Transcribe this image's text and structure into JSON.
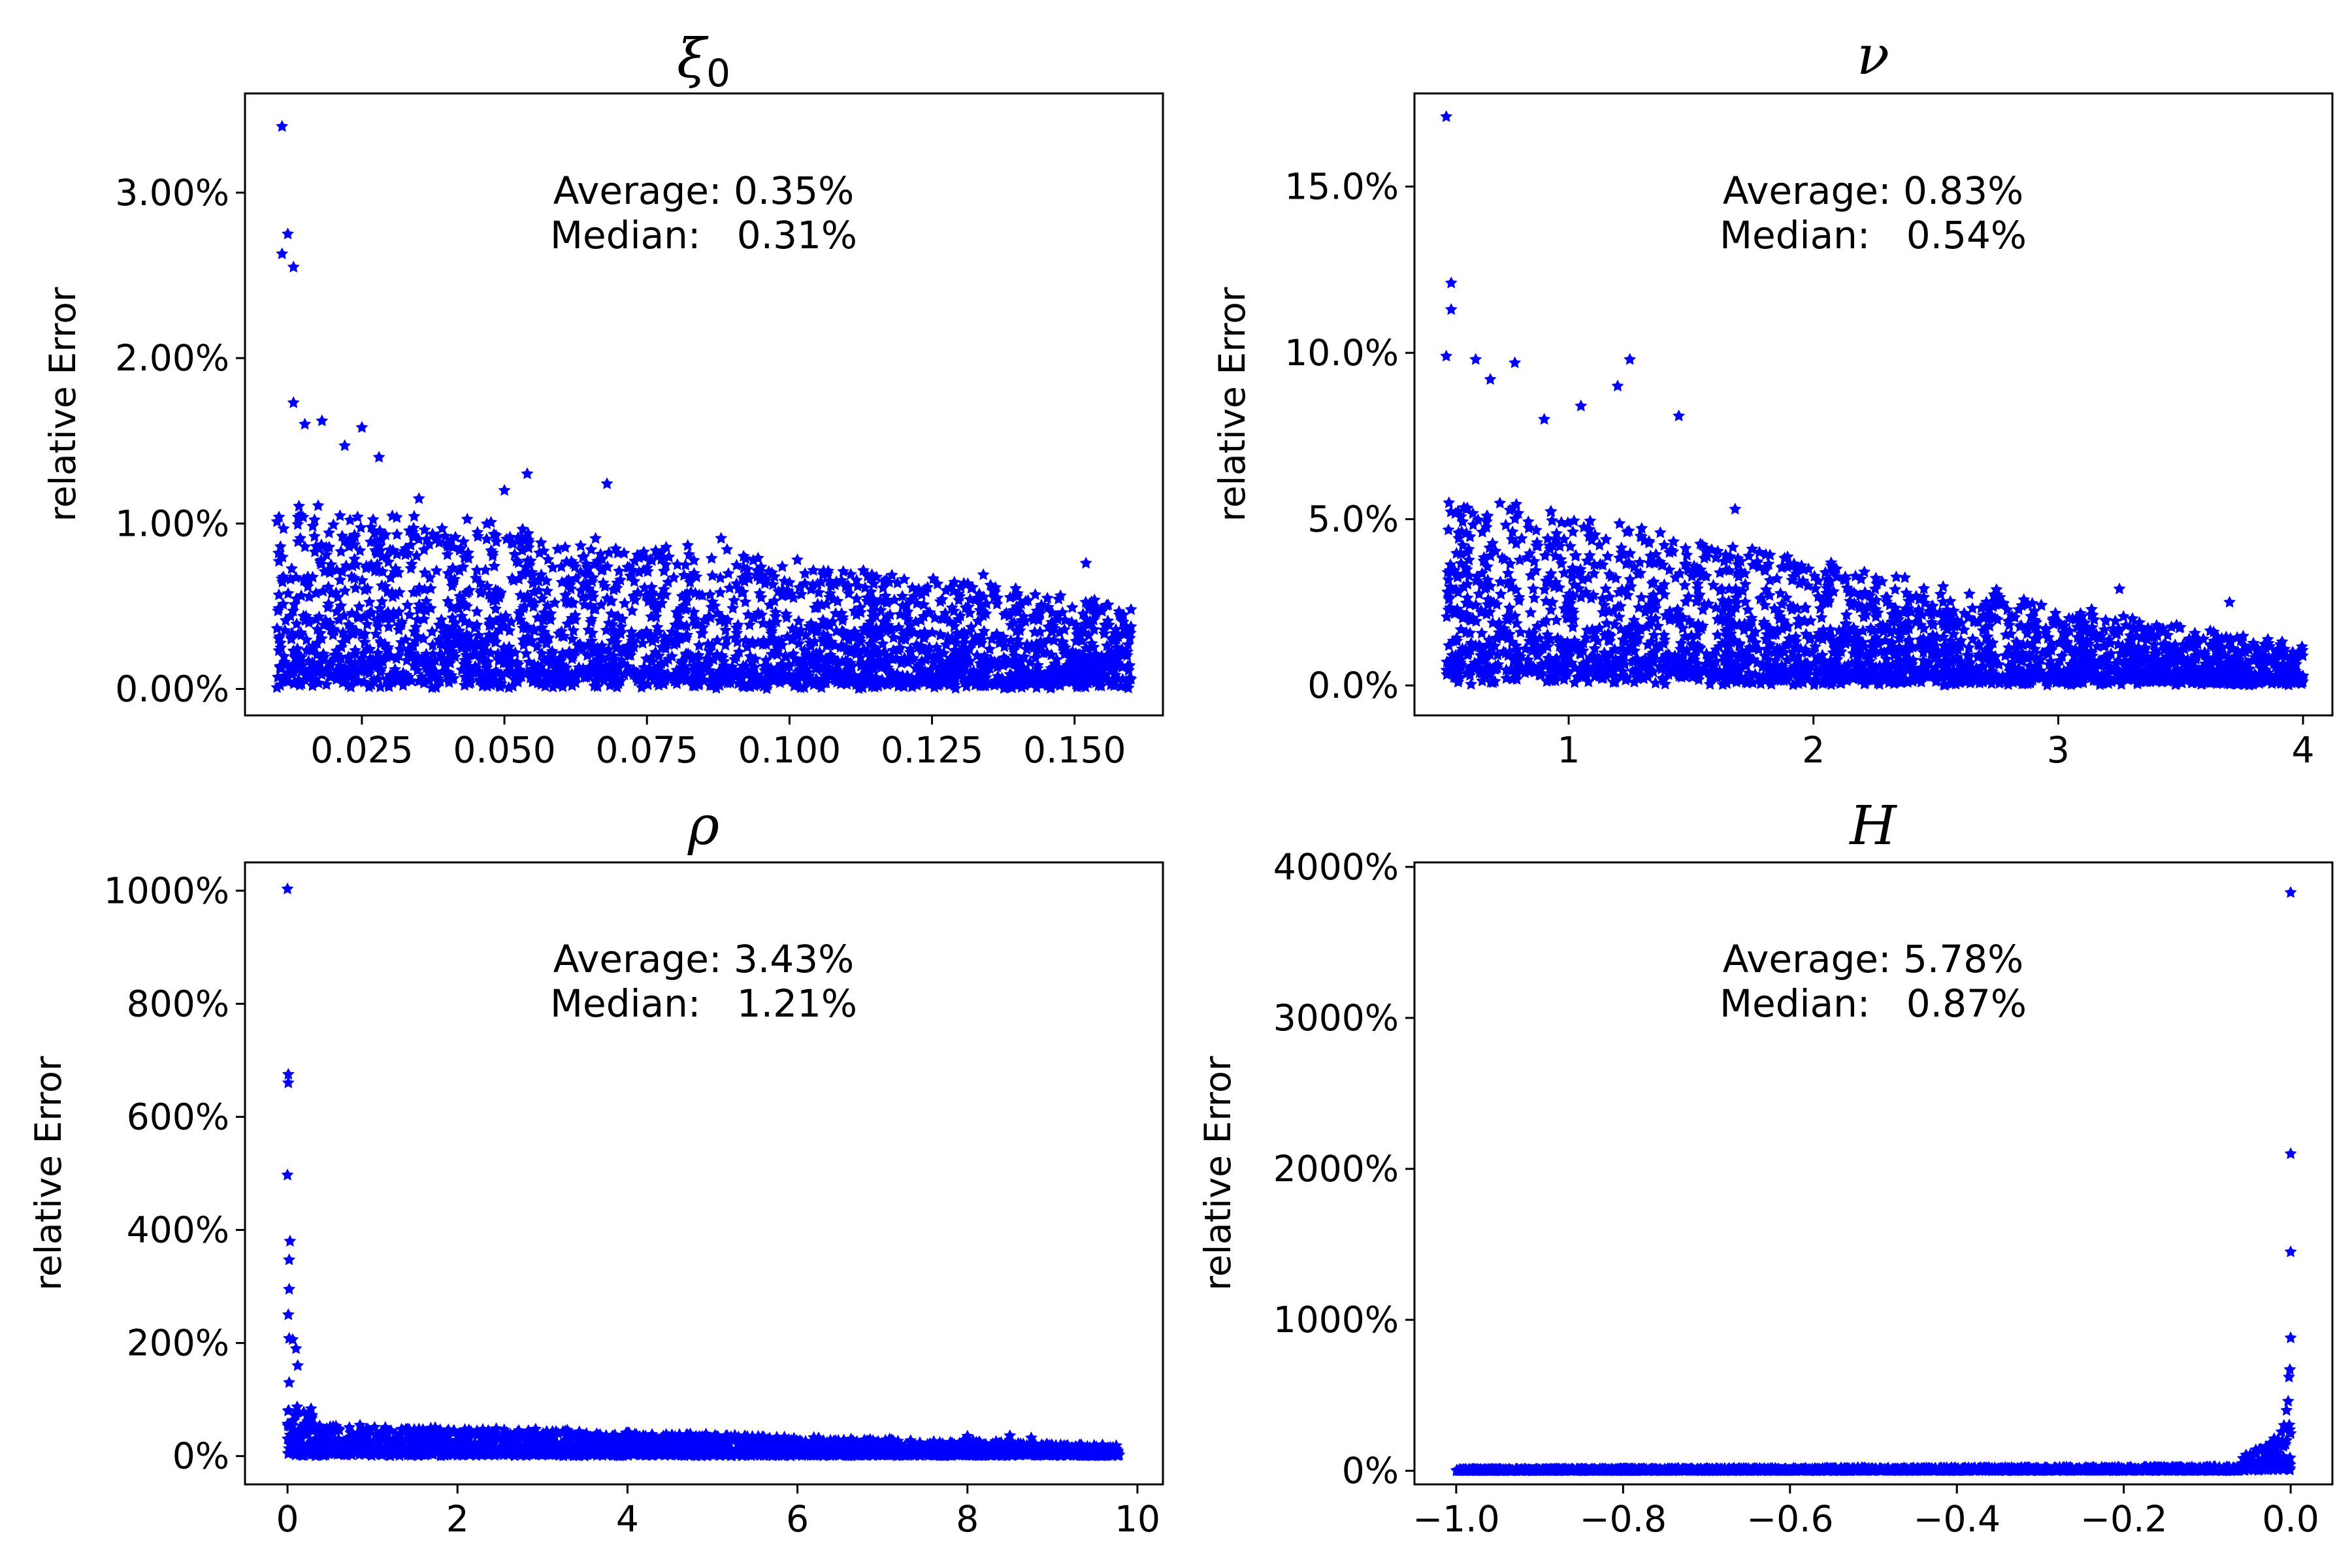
{
  "figure": {
    "point_color": "#0000ff",
    "marker": "star-icon"
  },
  "chart_data": [
    {
      "type": "scatter",
      "title": "ξ",
      "title_sub": "0",
      "ylabel": "relative Error",
      "xlabel": "",
      "xlim": [
        0.0045,
        0.1655
      ],
      "ylim": [
        -0.16,
        3.6
      ],
      "xticks": [
        0.025,
        0.05,
        0.075,
        0.1,
        0.125,
        0.15
      ],
      "xtick_labels": [
        "0.025",
        "0.050",
        "0.075",
        "0.100",
        "0.125",
        "0.150"
      ],
      "yticks": [
        0,
        1,
        2,
        3
      ],
      "ytick_labels": [
        "0.00%",
        "1.00%",
        "2.00%",
        "3.00%"
      ],
      "annotation": {
        "average": "Average: 0.35%",
        "median": "Median:   0.31%"
      },
      "outliers": [
        [
          0.011,
          3.4
        ],
        [
          0.011,
          2.63
        ],
        [
          0.012,
          2.75
        ],
        [
          0.013,
          2.55
        ],
        [
          0.013,
          1.73
        ],
        [
          0.015,
          1.6
        ],
        [
          0.018,
          1.62
        ],
        [
          0.022,
          1.47
        ],
        [
          0.025,
          1.58
        ],
        [
          0.028,
          1.4
        ],
        [
          0.035,
          1.15
        ],
        [
          0.05,
          1.2
        ],
        [
          0.054,
          1.3
        ],
        [
          0.068,
          1.24
        ],
        [
          0.088,
          0.91
        ],
        [
          0.152,
          0.76
        ],
        [
          0.134,
          0.69
        ]
      ],
      "dense_band": {
        "x": [
          0.01,
          0.16
        ],
        "y_low": [
          0.0,
          0.0
        ],
        "y_high": [
          1.2,
          0.55
        ]
      }
    },
    {
      "type": "scatter",
      "title": "ν",
      "ylabel": "relative Error",
      "xlabel": "",
      "xlim": [
        0.37,
        4.12
      ],
      "ylim": [
        -0.9,
        17.8
      ],
      "xticks": [
        1,
        2,
        3,
        4
      ],
      "xtick_labels": [
        "1",
        "2",
        "3",
        "4"
      ],
      "yticks": [
        0,
        5,
        10,
        15
      ],
      "ytick_labels": [
        "0.0%",
        "5.0%",
        "10.0%",
        "15.0%"
      ],
      "annotation": {
        "average": "Average: 0.83%",
        "median": "Median:   0.54%"
      },
      "outliers": [
        [
          0.5,
          17.1
        ],
        [
          0.52,
          12.1
        ],
        [
          0.52,
          11.3
        ],
        [
          0.5,
          9.9
        ],
        [
          0.62,
          9.8
        ],
        [
          0.68,
          9.2
        ],
        [
          0.78,
          9.7
        ],
        [
          0.9,
          8.0
        ],
        [
          1.2,
          9.0
        ],
        [
          1.25,
          9.8
        ],
        [
          1.05,
          8.4
        ],
        [
          1.45,
          8.1
        ],
        [
          1.68,
          5.3
        ],
        [
          1.75,
          4.1
        ],
        [
          1.98,
          3.5
        ],
        [
          2.7,
          2.4
        ],
        [
          3.25,
          2.9
        ],
        [
          3.7,
          2.5
        ]
      ],
      "dense_band": {
        "x": [
          0.5,
          4.0
        ],
        "y_low": [
          0.0,
          0.0
        ],
        "y_high": [
          6.0,
          1.2
        ]
      }
    },
    {
      "type": "scatter",
      "title": "ρ",
      "ylabel": "relative Error",
      "xlabel": "",
      "xlim": [
        -0.5,
        10.3
      ],
      "ylim": [
        -50,
        1050
      ],
      "xticks": [
        0,
        2,
        4,
        6,
        8,
        10
      ],
      "xtick_labels": [
        "0",
        "2",
        "4",
        "6",
        "8",
        "10"
      ],
      "yticks": [
        0,
        200,
        400,
        600,
        800,
        1000
      ],
      "ytick_labels": [
        "0%",
        "200%",
        "400%",
        "600%",
        "800%",
        "1000%"
      ],
      "annotation": {
        "average": "Average: 3.43%",
        "median": "Median:   1.21%"
      },
      "outliers": [
        [
          0.0,
          1003
        ],
        [
          0.01,
          675
        ],
        [
          0.01,
          660
        ],
        [
          0.0,
          497
        ],
        [
          0.03,
          380
        ],
        [
          0.02,
          347
        ],
        [
          0.02,
          295
        ],
        [
          0.01,
          250
        ],
        [
          0.02,
          208
        ],
        [
          0.06,
          206
        ],
        [
          0.1,
          190
        ],
        [
          0.12,
          160
        ],
        [
          0.02,
          130
        ],
        [
          0.4,
          48
        ],
        [
          0.6,
          30
        ],
        [
          8.0,
          35
        ],
        [
          8.5,
          36
        ],
        [
          8.75,
          32
        ],
        [
          9.75,
          12
        ]
      ],
      "dense_band": {
        "x": [
          0.0,
          9.8
        ],
        "y_low": [
          0,
          0
        ],
        "y_high": [
          60,
          20
        ]
      }
    },
    {
      "type": "scatter",
      "title": "H",
      "ylabel": "relative Error",
      "xlabel": "",
      "xlim": [
        -1.05,
        0.05
      ],
      "ylim": [
        -90,
        4030
      ],
      "xticks": [
        -1.0,
        -0.8,
        -0.6,
        -0.4,
        -0.2,
        0.0
      ],
      "xtick_labels": [
        "−1.0",
        "−0.8",
        "−0.6",
        "−0.4",
        "−0.2",
        "0.0"
      ],
      "yticks": [
        0,
        1000,
        2000,
        3000,
        4000
      ],
      "ytick_labels": [
        "0%",
        "1000%",
        "2000%",
        "3000%",
        "4000%"
      ],
      "annotation": {
        "average": "Average: 5.78%",
        "median": "Median:   0.87%"
      },
      "outliers": [
        [
          0.0,
          3830
        ],
        [
          0.0,
          2100
        ],
        [
          0.0,
          1450
        ],
        [
          0.0,
          880
        ],
        [
          -0.001,
          670
        ],
        [
          -0.002,
          620
        ],
        [
          -0.003,
          460
        ],
        [
          -0.005,
          400
        ],
        [
          -0.008,
          300
        ],
        [
          -0.01,
          200
        ],
        [
          -0.02,
          120
        ],
        [
          -0.03,
          80
        ]
      ],
      "dense_band": {
        "x": [
          -1.0,
          0.0
        ],
        "y_low": [
          0,
          0
        ],
        "y_high": [
          10,
          30
        ]
      }
    }
  ]
}
